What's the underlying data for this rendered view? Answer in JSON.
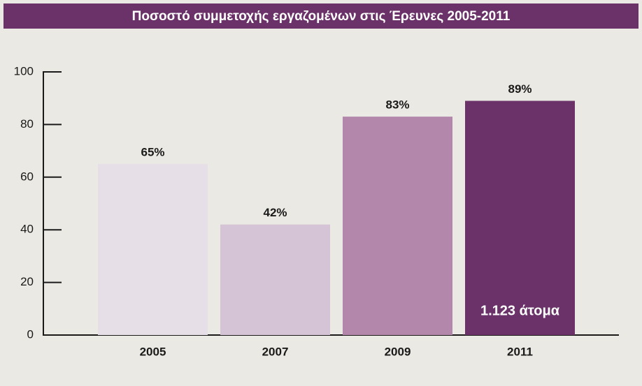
{
  "chart_data": {
    "type": "bar",
    "title": "Ποσοστό συμμετοχής εργαζομένων στις Έρευνες 2005-2011",
    "categories": [
      "2005",
      "2007",
      "2009",
      "2011"
    ],
    "values": [
      65,
      42,
      83,
      89
    ],
    "value_labels": [
      "65%",
      "42%",
      "83%",
      "89%"
    ],
    "colors": [
      "#e6dfe8",
      "#d4c4d6",
      "#b387ab",
      "#6a3268"
    ],
    "annotation": "1.123 άτομα",
    "ylim": [
      0,
      100
    ],
    "yticks": [
      0,
      20,
      40,
      60,
      80,
      100
    ],
    "grid": false
  }
}
